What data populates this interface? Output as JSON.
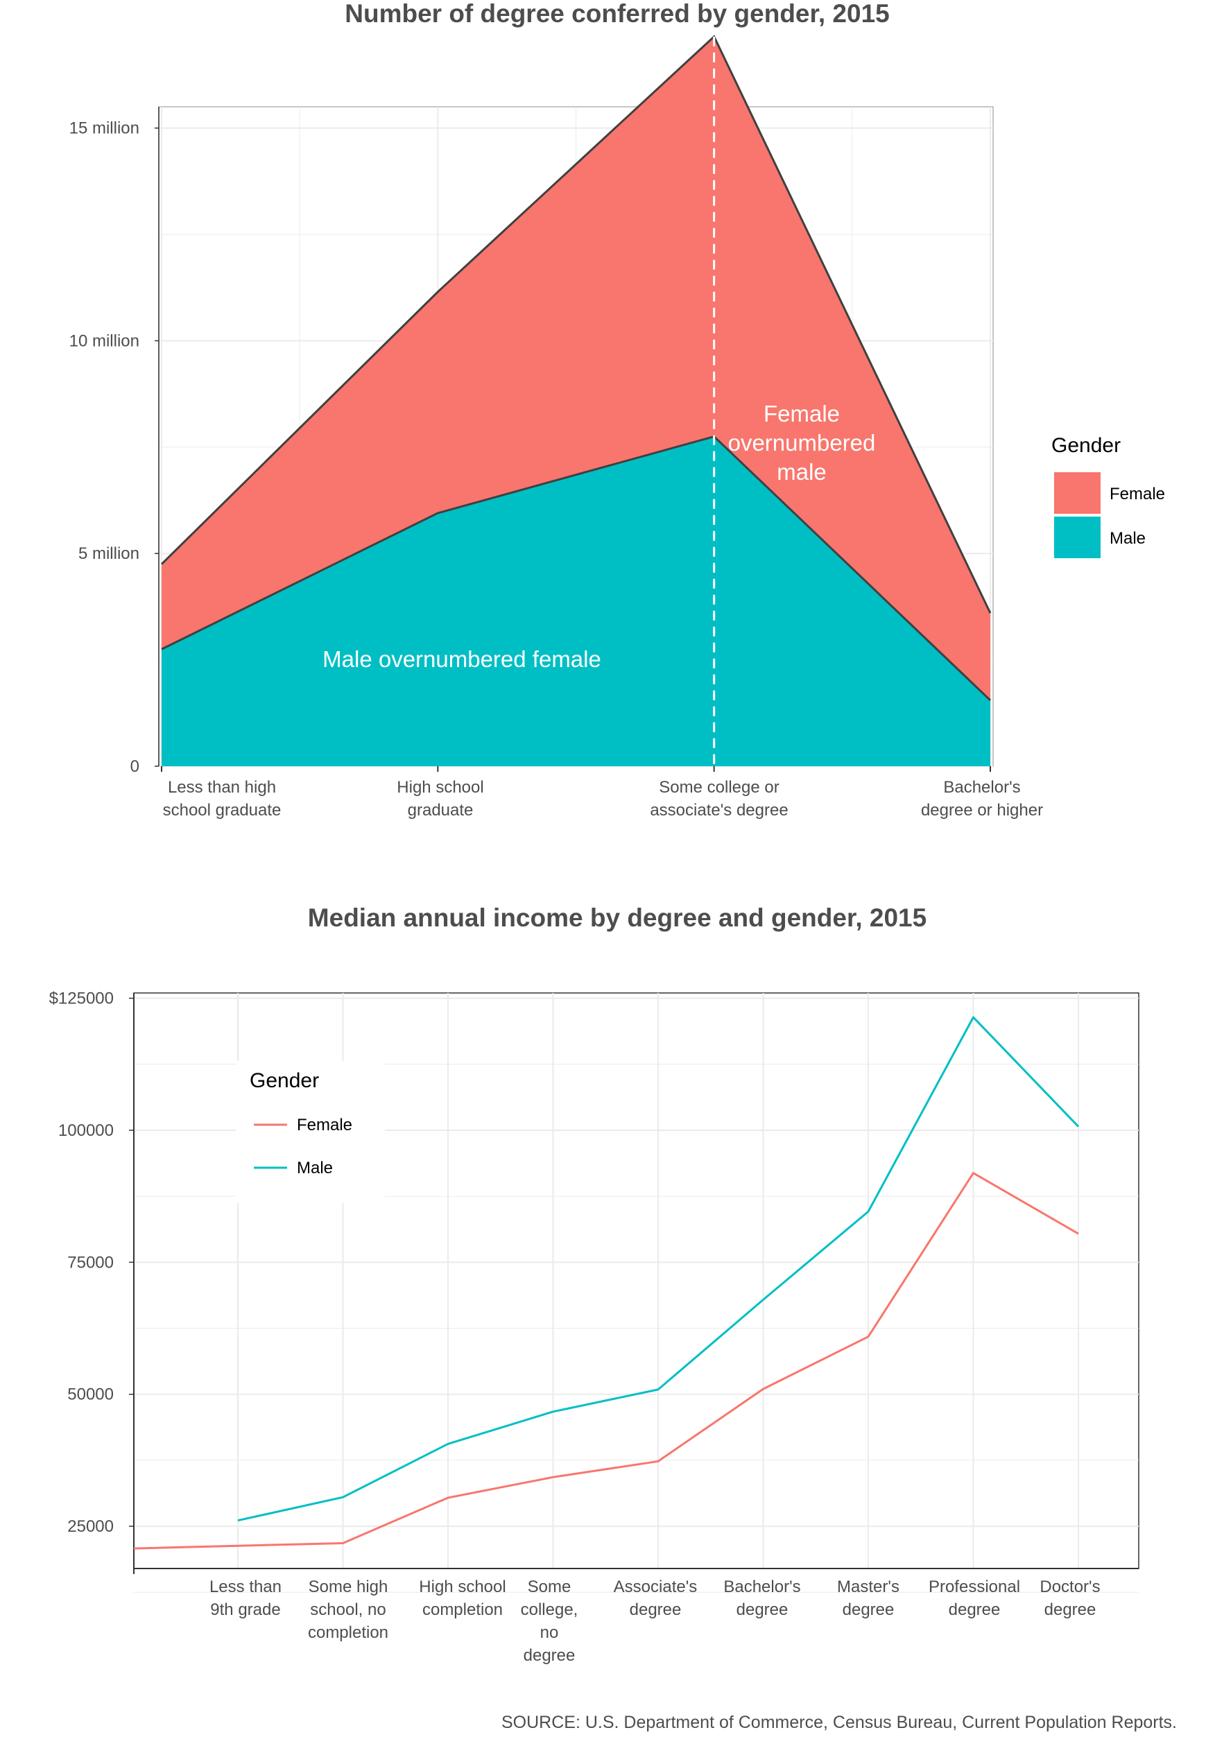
{
  "source": "SOURCE: U.S. Department of Commerce, Census Bureau, Current Population Reports.",
  "colors": {
    "female": "#F8766D",
    "male": "#00BFC4",
    "outline": "#404040",
    "grid": "#EBEBEB"
  },
  "chart_data": [
    {
      "type": "area",
      "stacked": true,
      "title": "Number of degree conferred by gender, 2015",
      "categories": [
        "Less than high school graduate",
        "High school graduate",
        "Some college or associate's degree",
        "Bachelor's degree or higher"
      ],
      "category_lines": [
        [
          "Less than high",
          "school graduate"
        ],
        [
          "High school",
          "graduate"
        ],
        [
          "Some college or",
          "associate's degree"
        ],
        [
          "Bachelor's",
          "degree or higher"
        ]
      ],
      "series": [
        {
          "name": "Male",
          "values": [
            2.75,
            5.95,
            7.75,
            1.55
          ]
        },
        {
          "name": "Female",
          "values": [
            2.0,
            5.2,
            9.4,
            2.05
          ]
        }
      ],
      "ylim": [
        0,
        15.5
      ],
      "yticks": [
        0,
        5,
        10,
        15
      ],
      "ytick_labels": [
        "0",
        "5 million",
        "10 million",
        "15 million"
      ],
      "grid": true,
      "legend": {
        "title": "Gender",
        "position": "right",
        "entries": [
          "Female",
          "Male"
        ]
      },
      "vline_category": "Some college or associate's degree",
      "annotations": {
        "female_region": [
          "Female",
          "overnumbered",
          "male"
        ],
        "male_region": "Male overnumbered female"
      }
    },
    {
      "type": "line",
      "title": "Median annual income by degree and gender, 2015",
      "categories": [
        "Less than 9th grade",
        "Some high school, no completion",
        "High school completion",
        "Some college, no degree",
        "Associate's degree",
        "Bachelor's degree",
        "Master's degree",
        "Professional degree",
        "Doctor's degree"
      ],
      "category_lines": [
        [
          "Less than",
          "9th grade"
        ],
        [
          "Some high",
          "school, no",
          "completion"
        ],
        [
          "High school",
          "completion"
        ],
        [
          "Some",
          "college,",
          "no",
          "degree"
        ],
        [
          "Associate's",
          "degree"
        ],
        [
          "Bachelor's",
          "degree"
        ],
        [
          "Master's",
          "degree"
        ],
        [
          "Professional",
          "degree"
        ],
        [
          "Doctor's",
          "degree"
        ]
      ],
      "series": [
        {
          "name": "Female",
          "x": [
            -1,
            0,
            1,
            2,
            3,
            4,
            5,
            6,
            7,
            8
          ],
          "values": [
            20800,
            21300,
            21800,
            30400,
            34300,
            37300,
            51000,
            60900,
            91900,
            80400
          ]
        },
        {
          "name": "Male",
          "x": [
            0,
            1,
            2,
            3,
            4,
            5,
            6,
            7,
            8
          ],
          "values": [
            26100,
            30500,
            40600,
            46700,
            50900,
            67900,
            84600,
            121400,
            100700
          ]
        }
      ],
      "ylim": [
        17000,
        126000
      ],
      "yticks": [
        25000,
        50000,
        75000,
        100000,
        125000
      ],
      "ytick_labels": [
        "25000",
        "50000",
        "75000",
        "100000",
        "$125000"
      ],
      "grid": true,
      "legend": {
        "title": "Gender",
        "position": "top-left",
        "entries": [
          "Female",
          "Male"
        ]
      }
    }
  ]
}
